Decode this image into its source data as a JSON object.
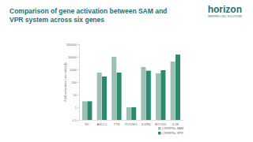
{
  "logo": {
    "name": "horizon",
    "tagline": "INSPIRED CELL SOLUTIONS"
  },
  "chart_data": {
    "type": "bar",
    "title": "Comparison of gene activation between SAM and VPR system across six genes",
    "y_label": "Fold activation (normalized)",
    "categories": [
      "NT",
      "ASCL1",
      "TTN",
      "POU5F1",
      "IL1RN",
      "MYOD1",
      "IL1B"
    ],
    "series": [
      {
        "name": "CRISPRa SAM",
        "color": "#9dc0b4",
        "values": [
          3,
          560,
          10000,
          1,
          1550,
          490,
          4200
        ]
      },
      {
        "name": "CRISPRa VPR",
        "color": "#2b8a6d",
        "values": [
          3,
          275,
          560,
          1,
          790,
          870,
          15000
        ]
      }
    ],
    "ylim": [
      0.1,
      100000
    ],
    "yticks": [
      0.1,
      1,
      10,
      100,
      1000,
      10000,
      100000
    ],
    "log": "y",
    "grid": false,
    "legend": "lower right"
  }
}
